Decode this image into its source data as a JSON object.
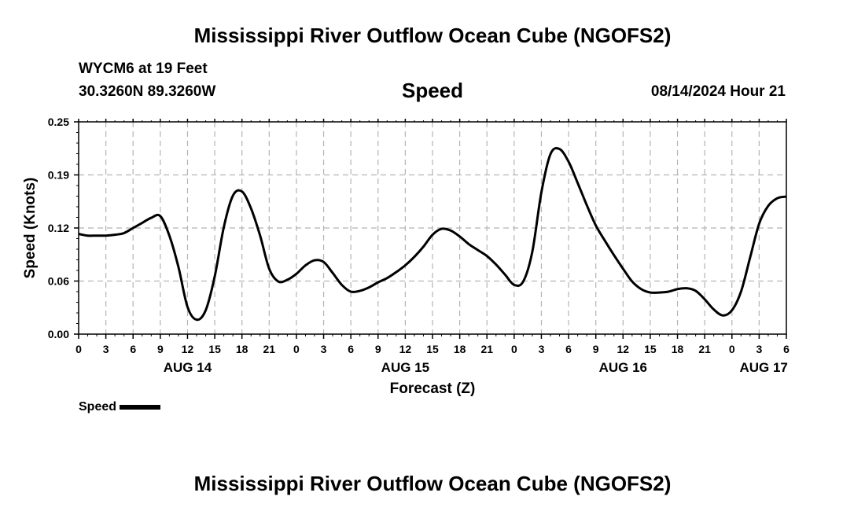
{
  "header": {
    "title": "Mississippi River Outflow Ocean Cube (NGOFS2)",
    "station": "WYCM6 at 19 Feet",
    "coords": "30.3260N  89.3260W",
    "panel_title": "Speed",
    "timestamp": "08/14/2024 Hour 21"
  },
  "footer": {
    "title": "Mississippi River Outflow Ocean Cube (NGOFS2)"
  },
  "legend": {
    "label": "Speed",
    "color": "#000000"
  },
  "chart_data": {
    "type": "line",
    "title": "Speed",
    "xlabel": "Forecast (Z)",
    "ylabel": "Speed (Knots)",
    "xlim": [
      0,
      78
    ],
    "ylim": [
      0,
      0.25
    ],
    "yticks": [
      "0.00",
      "0.06",
      "0.12",
      "0.19",
      "0.25"
    ],
    "ytick_values": [
      0,
      0.0625,
      0.125,
      0.1875,
      0.25
    ],
    "xticks": [
      0,
      3,
      6,
      9,
      12,
      15,
      18,
      21,
      24,
      27,
      30,
      33,
      36,
      39,
      42,
      45,
      48,
      51,
      54,
      57,
      60,
      63,
      66,
      69,
      72,
      75,
      78
    ],
    "xtick_labels": [
      "0",
      "3",
      "6",
      "9",
      "12",
      "15",
      "18",
      "21",
      "0",
      "3",
      "6",
      "9",
      "12",
      "15",
      "18",
      "21",
      "0",
      "3",
      "6",
      "9",
      "12",
      "15",
      "18",
      "21",
      "0",
      "3",
      "6"
    ],
    "date_labels": [
      {
        "label": "AUG 14",
        "hour": 12
      },
      {
        "label": "AUG 15",
        "hour": 36
      },
      {
        "label": "AUG 16",
        "hour": 60
      },
      {
        "label": "AUG 17",
        "hour": 75.5
      }
    ],
    "grid": true,
    "series": [
      {
        "name": "Speed",
        "color": "#000000",
        "x": [
          0,
          1,
          2,
          3,
          4,
          5,
          6,
          7,
          8,
          9,
          10,
          11,
          12,
          13,
          14,
          15,
          16,
          17,
          18,
          19,
          20,
          21,
          22,
          23,
          24,
          25,
          26,
          27,
          28,
          29,
          30,
          31,
          32,
          33,
          34,
          35,
          36,
          37,
          38,
          39,
          40,
          41,
          42,
          43,
          44,
          45,
          46,
          47,
          48,
          49,
          50,
          51,
          52,
          53,
          54,
          55,
          56,
          57,
          58,
          59,
          60,
          61,
          62,
          63,
          64,
          65,
          66,
          67,
          68,
          69,
          70,
          71,
          72,
          73,
          74,
          75,
          76,
          77,
          78
        ],
        "values": [
          0.118,
          0.116,
          0.116,
          0.116,
          0.117,
          0.119,
          0.125,
          0.131,
          0.137,
          0.139,
          0.116,
          0.079,
          0.032,
          0.017,
          0.028,
          0.068,
          0.126,
          0.163,
          0.168,
          0.148,
          0.116,
          0.077,
          0.062,
          0.064,
          0.071,
          0.081,
          0.087,
          0.085,
          0.072,
          0.058,
          0.05,
          0.051,
          0.055,
          0.061,
          0.066,
          0.073,
          0.081,
          0.091,
          0.103,
          0.117,
          0.124,
          0.122,
          0.115,
          0.106,
          0.099,
          0.092,
          0.082,
          0.07,
          0.058,
          0.062,
          0.097,
          0.167,
          0.212,
          0.218,
          0.203,
          0.178,
          0.152,
          0.128,
          0.11,
          0.093,
          0.077,
          0.062,
          0.053,
          0.049,
          0.049,
          0.05,
          0.053,
          0.054,
          0.051,
          0.041,
          0.029,
          0.022,
          0.028,
          0.05,
          0.09,
          0.13,
          0.151,
          0.16,
          0.162
        ]
      }
    ]
  }
}
